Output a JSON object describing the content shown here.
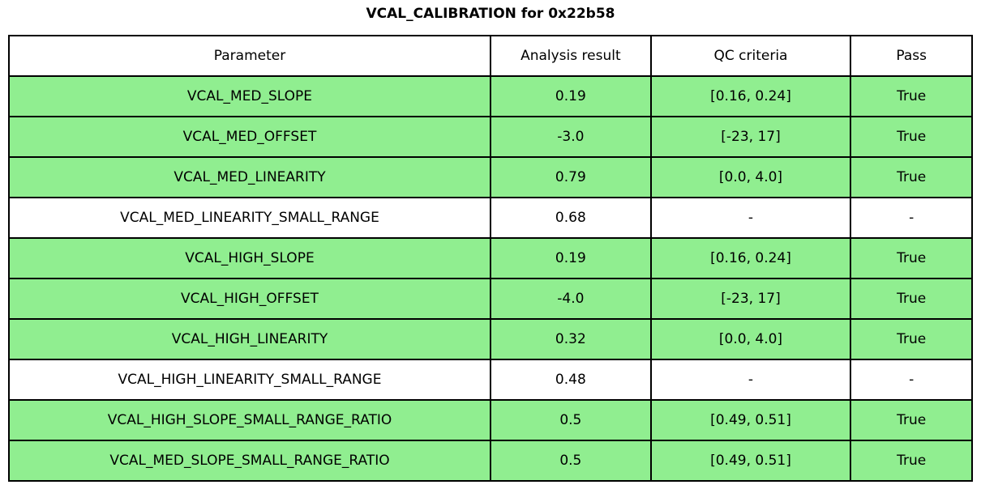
{
  "title": "VCAL_CALIBRATION for 0x22b58",
  "colors": {
    "pass_row_green": "#90ee90",
    "no_qc_row_white": "#ffffff",
    "border": "#000000",
    "text": "#000000"
  },
  "table": {
    "headers": [
      "Parameter",
      "Analysis result",
      "QC criteria",
      "Pass"
    ],
    "rows": [
      {
        "parameter": "VCAL_MED_SLOPE",
        "result": "0.19",
        "criteria": "[0.16, 0.24]",
        "pass": "True",
        "highlight": true
      },
      {
        "parameter": "VCAL_MED_OFFSET",
        "result": "-3.0",
        "criteria": "[-23, 17]",
        "pass": "True",
        "highlight": true
      },
      {
        "parameter": "VCAL_MED_LINEARITY",
        "result": "0.79",
        "criteria": "[0.0, 4.0]",
        "pass": "True",
        "highlight": true
      },
      {
        "parameter": "VCAL_MED_LINEARITY_SMALL_RANGE",
        "result": "0.68",
        "criteria": "-",
        "pass": "-",
        "highlight": false
      },
      {
        "parameter": "VCAL_HIGH_SLOPE",
        "result": "0.19",
        "criteria": "[0.16, 0.24]",
        "pass": "True",
        "highlight": true
      },
      {
        "parameter": "VCAL_HIGH_OFFSET",
        "result": "-4.0",
        "criteria": "[-23, 17]",
        "pass": "True",
        "highlight": true
      },
      {
        "parameter": "VCAL_HIGH_LINEARITY",
        "result": "0.32",
        "criteria": "[0.0, 4.0]",
        "pass": "True",
        "highlight": true
      },
      {
        "parameter": "VCAL_HIGH_LINEARITY_SMALL_RANGE",
        "result": "0.48",
        "criteria": "-",
        "pass": "-",
        "highlight": false
      },
      {
        "parameter": "VCAL_HIGH_SLOPE_SMALL_RANGE_RATIO",
        "result": "0.5",
        "criteria": "[0.49, 0.51]",
        "pass": "True",
        "highlight": true
      },
      {
        "parameter": "VCAL_MED_SLOPE_SMALL_RANGE_RATIO",
        "result": "0.5",
        "criteria": "[0.49, 0.51]",
        "pass": "True",
        "highlight": true
      }
    ]
  }
}
